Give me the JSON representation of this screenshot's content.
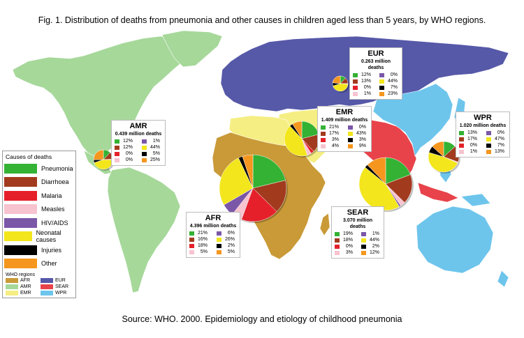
{
  "title": "Fig. 1. Distribution of deaths from pneumonia and other causes in children aged less than 5 years, by WHO regions.",
  "source": "Source: WHO. 2000. Epidemiology and etiology of childhood pneumonia",
  "causes_legend": {
    "title": "Causes of deaths",
    "items": [
      {
        "label": "Pneumonia",
        "color": "#33b233"
      },
      {
        "label": "Diarrhoea",
        "color": "#a23a1e"
      },
      {
        "label": "Malaria",
        "color": "#e5202a"
      },
      {
        "label": "Measles",
        "color": "#f7c3cf"
      },
      {
        "label": "HIV/AIDS",
        "color": "#7b57a8"
      },
      {
        "label": "Neonatal causes",
        "color": "#f3e61c"
      },
      {
        "label": "Injuries",
        "color": "#000000"
      },
      {
        "label": "Other",
        "color": "#f5961e"
      }
    ]
  },
  "regions_legend": {
    "title": "WHO regions",
    "items": [
      {
        "label": "AFR",
        "color": "#c99a37"
      },
      {
        "label": "EUR",
        "color": "#5658a8"
      },
      {
        "label": "AMR",
        "color": "#a6d89a"
      },
      {
        "label": "SEAR",
        "color": "#e8434b"
      },
      {
        "label": "EMR",
        "color": "#f5ee82"
      },
      {
        "label": "WPR",
        "color": "#6ec5ec"
      }
    ]
  },
  "regions": {
    "eur": {
      "name": "EUR",
      "deaths": "0.263 million deaths",
      "left": [
        {
          "pct": "12%",
          "color": "#33b233"
        },
        {
          "pct": "13%",
          "color": "#a23a1e"
        },
        {
          "pct": "0%",
          "color": "#e5202a"
        },
        {
          "pct": "1%",
          "color": "#f7c3cf"
        }
      ],
      "right": [
        {
          "pct": "0%",
          "color": "#7b57a8"
        },
        {
          "pct": "44%",
          "color": "#f3e61c"
        },
        {
          "pct": "7%",
          "color": "#000000"
        },
        {
          "pct": "23%",
          "color": "#f5961e"
        }
      ]
    },
    "amr": {
      "name": "AMR",
      "deaths": "0.439 million deaths",
      "left": [
        {
          "pct": "12%",
          "color": "#33b233"
        },
        {
          "pct": "12%",
          "color": "#a23a1e"
        },
        {
          "pct": "0%",
          "color": "#e5202a"
        },
        {
          "pct": "0%",
          "color": "#f7c3cf"
        }
      ],
      "right": [
        {
          "pct": "1%",
          "color": "#7b57a8"
        },
        {
          "pct": "44%",
          "color": "#f3e61c"
        },
        {
          "pct": "5%",
          "color": "#000000"
        },
        {
          "pct": "25%",
          "color": "#f5961e"
        }
      ]
    },
    "emr": {
      "name": "EMR",
      "deaths": "1.409 million deaths",
      "left": [
        {
          "pct": "21%",
          "color": "#33b233"
        },
        {
          "pct": "17%",
          "color": "#a23a1e"
        },
        {
          "pct": "3%",
          "color": "#e5202a"
        },
        {
          "pct": "4%",
          "color": "#f7c3cf"
        }
      ],
      "right": [
        {
          "pct": "0%",
          "color": "#7b57a8"
        },
        {
          "pct": "43%",
          "color": "#f3e61c"
        },
        {
          "pct": "3%",
          "color": "#000000"
        },
        {
          "pct": "9%",
          "color": "#f5961e"
        }
      ]
    },
    "wpr": {
      "name": "WPR",
      "deaths": "1.020 million deaths",
      "left": [
        {
          "pct": "13%",
          "color": "#33b233"
        },
        {
          "pct": "17%",
          "color": "#a23a1e"
        },
        {
          "pct": "0%",
          "color": "#e5202a"
        },
        {
          "pct": "1%",
          "color": "#f7c3cf"
        }
      ],
      "right": [
        {
          "pct": "0%",
          "color": "#7b57a8"
        },
        {
          "pct": "47%",
          "color": "#f3e61c"
        },
        {
          "pct": "7%",
          "color": "#000000"
        },
        {
          "pct": "13%",
          "color": "#f5961e"
        }
      ]
    },
    "afr": {
      "name": "AFR",
      "deaths": "4.396 million deaths",
      "left": [
        {
          "pct": "21%",
          "color": "#33b233"
        },
        {
          "pct": "16%",
          "color": "#a23a1e"
        },
        {
          "pct": "18%",
          "color": "#e5202a"
        },
        {
          "pct": "5%",
          "color": "#f7c3cf"
        }
      ],
      "right": [
        {
          "pct": "6%",
          "color": "#7b57a8"
        },
        {
          "pct": "26%",
          "color": "#f3e61c"
        },
        {
          "pct": "2%",
          "color": "#000000"
        },
        {
          "pct": "5%",
          "color": "#f5961e"
        }
      ]
    },
    "sear": {
      "name": "SEAR",
      "deaths": "3.070 million deaths",
      "left": [
        {
          "pct": "19%",
          "color": "#33b233"
        },
        {
          "pct": "18%",
          "color": "#a23a1e"
        },
        {
          "pct": "0%",
          "color": "#e5202a"
        },
        {
          "pct": "3%",
          "color": "#f7c3cf"
        }
      ],
      "right": [
        {
          "pct": "1%",
          "color": "#7b57a8"
        },
        {
          "pct": "44%",
          "color": "#f3e61c"
        },
        {
          "pct": "2%",
          "color": "#000000"
        },
        {
          "pct": "12%",
          "color": "#f5961e"
        }
      ]
    }
  },
  "pie_shares": {
    "order": [
      "Pneumonia",
      "Diarrhoea",
      "Malaria",
      "Measles",
      "HIV/AIDS",
      "Neonatal causes",
      "Injuries",
      "Other"
    ],
    "colors": [
      "#33b233",
      "#a23a1e",
      "#e5202a",
      "#f7c3cf",
      "#7b57a8",
      "#f3e61c",
      "#000000",
      "#f5961e"
    ],
    "eur": [
      12,
      13,
      0,
      1,
      0,
      44,
      7,
      23
    ],
    "amr": [
      12,
      12,
      0,
      0,
      1,
      44,
      5,
      25
    ],
    "emr": [
      21,
      17,
      3,
      4,
      0,
      43,
      3,
      9
    ],
    "wpr": [
      13,
      17,
      0,
      1,
      0,
      47,
      7,
      13
    ],
    "afr": [
      21,
      16,
      18,
      5,
      6,
      26,
      2,
      5
    ],
    "sear": [
      19,
      18,
      0,
      3,
      1,
      44,
      2,
      12
    ]
  }
}
